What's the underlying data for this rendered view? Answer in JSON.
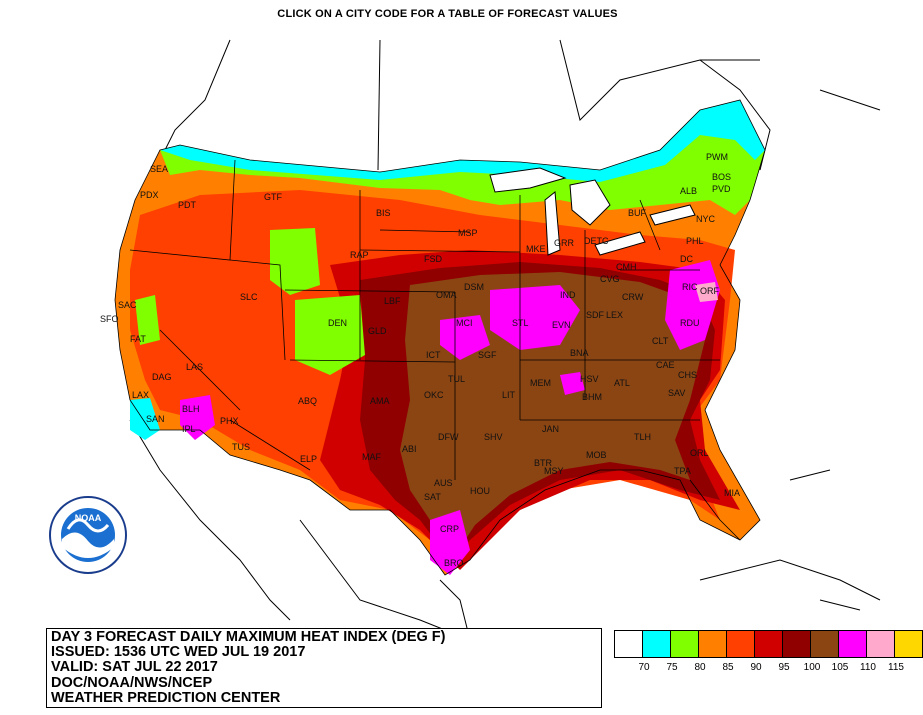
{
  "header": {
    "instruction": "CLICK ON A CITY CODE FOR A TABLE OF FORECAST VALUES"
  },
  "title_block": {
    "line1": "DAY 3 FORECAST DAILY MAXIMUM HEAT INDEX (DEG F)",
    "line2": "ISSUED: 1536 UTC WED JUL 19 2017",
    "line3": "VALID: SAT JUL 22 2017",
    "line4": "DOC/NOAA/NWS/NCEP",
    "line5": "WEATHER PREDICTION CENTER"
  },
  "logo": {
    "text": "NOAA",
    "icon": "noaa-logo-icon"
  },
  "legend": {
    "colors": [
      "#ffffff",
      "#00ffff",
      "#80ff00",
      "#ff8000",
      "#ff4000",
      "#d00000",
      "#900000",
      "#8b4513",
      "#ff00ff",
      "#ffaacc",
      "#ffd700"
    ],
    "labels": [
      "70",
      "75",
      "80",
      "85",
      "90",
      "95",
      "100",
      "105",
      "110",
      "115"
    ]
  },
  "colors": {
    "h70": "#ffffff",
    "h75": "#00ffff",
    "h80": "#80ff00",
    "h85": "#ff8000",
    "h90": "#ff4000",
    "h95": "#d00000",
    "h100": "#900000",
    "h105": "#8b4513",
    "h110": "#ff00ff",
    "h115": "#ffaacc"
  },
  "cities": [
    "SEA",
    "PDX",
    "PDT",
    "GTF",
    "BIS",
    "MSP",
    "RAP",
    "FSD",
    "MKE",
    "GRR",
    "DETC",
    "BUF",
    "ALB",
    "BOS",
    "PWM",
    "PVD",
    "NYC",
    "PHL",
    "DC",
    "RIC",
    "ORF",
    "RDU",
    "CLT",
    "CAE",
    "CHS",
    "SAV",
    "ATL",
    "BHM",
    "HSV",
    "MEM",
    "BNA",
    "LEX",
    "CVG",
    "CMH",
    "CRW",
    "SDF",
    "EVN",
    "IND",
    "STL",
    "MCI",
    "OMA",
    "DSM",
    "ICT",
    "TUL",
    "OKC",
    "LIT",
    "SGF",
    "SHV",
    "DFW",
    "ABI",
    "AMA",
    "ABQ",
    "DEN",
    "GLD",
    "LBF",
    "SLC",
    "ELP",
    "MAF",
    "SAT",
    "AUS",
    "HOU",
    "CRP",
    "BRO",
    "JAN",
    "MOB",
    "BTR",
    "MSY",
    "TLH",
    "ORL",
    "TPA",
    "MIA",
    "PHX",
    "TUS",
    "BLH",
    "IPL",
    "SAN",
    "LAX",
    "FAT",
    "SFO",
    "SAC",
    "LAS",
    "DAG"
  ]
}
